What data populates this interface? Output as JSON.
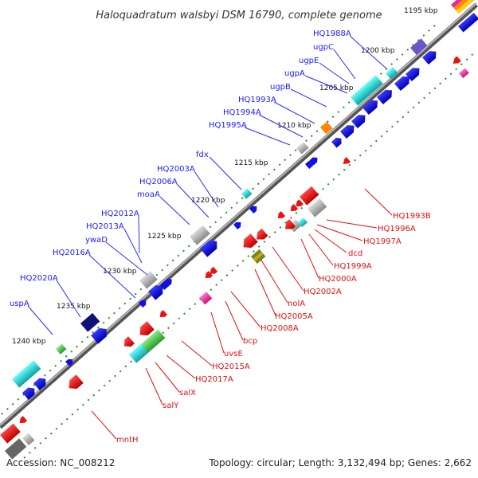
{
  "title": "Haloquadratum walsbyi DSM 16790, complete genome",
  "footer": {
    "accession": "Accession: NC_008212",
    "summary": "Topology: circular; Length: 3,132,494 bp; Genes: 2,662"
  },
  "ticks": [
    "1195 kbp",
    "1200 kbp",
    "1205 kbp",
    "1210 kbp",
    "1215 kbp",
    "1220 kbp",
    "1225 kbp",
    "1230 kbp",
    "1235 kbp",
    "1240 kbp"
  ],
  "forward_labels": [
    "HQ1988A",
    "ugpC",
    "ugpE",
    "ugpA",
    "ugpB",
    "HQ1993A",
    "HQ1994A",
    "HQ1995A",
    "fdx",
    "HQ2003A",
    "HQ2006A",
    "moaA",
    "HQ2012A",
    "HQ2013A",
    "ywaD",
    "HQ2016A",
    "HQ2020A",
    "uspA"
  ],
  "reverse_labels": [
    "HQ1993B",
    "HQ1996A",
    "HQ1997A",
    "dcd",
    "HQ1999A",
    "HQ2000A",
    "HQ2002A",
    "nolA",
    "HQ2005A",
    "HQ2008A",
    "bcp",
    "uvsE",
    "HQ2015A",
    "HQ2017A",
    "salX",
    "salY",
    "mntH"
  ],
  "colors": {
    "forward": "#1010e0",
    "reverse": "#ee1111",
    "backbone": "#8a8a8a",
    "cyan": "#22cccc",
    "green": "#33bb44",
    "grey": "#aaaaaa",
    "navy": "#11117a",
    "orange": "#ff8800",
    "purple": "#6a55cc",
    "magenta": "#ee2299",
    "olive": "#6a8a1a"
  }
}
